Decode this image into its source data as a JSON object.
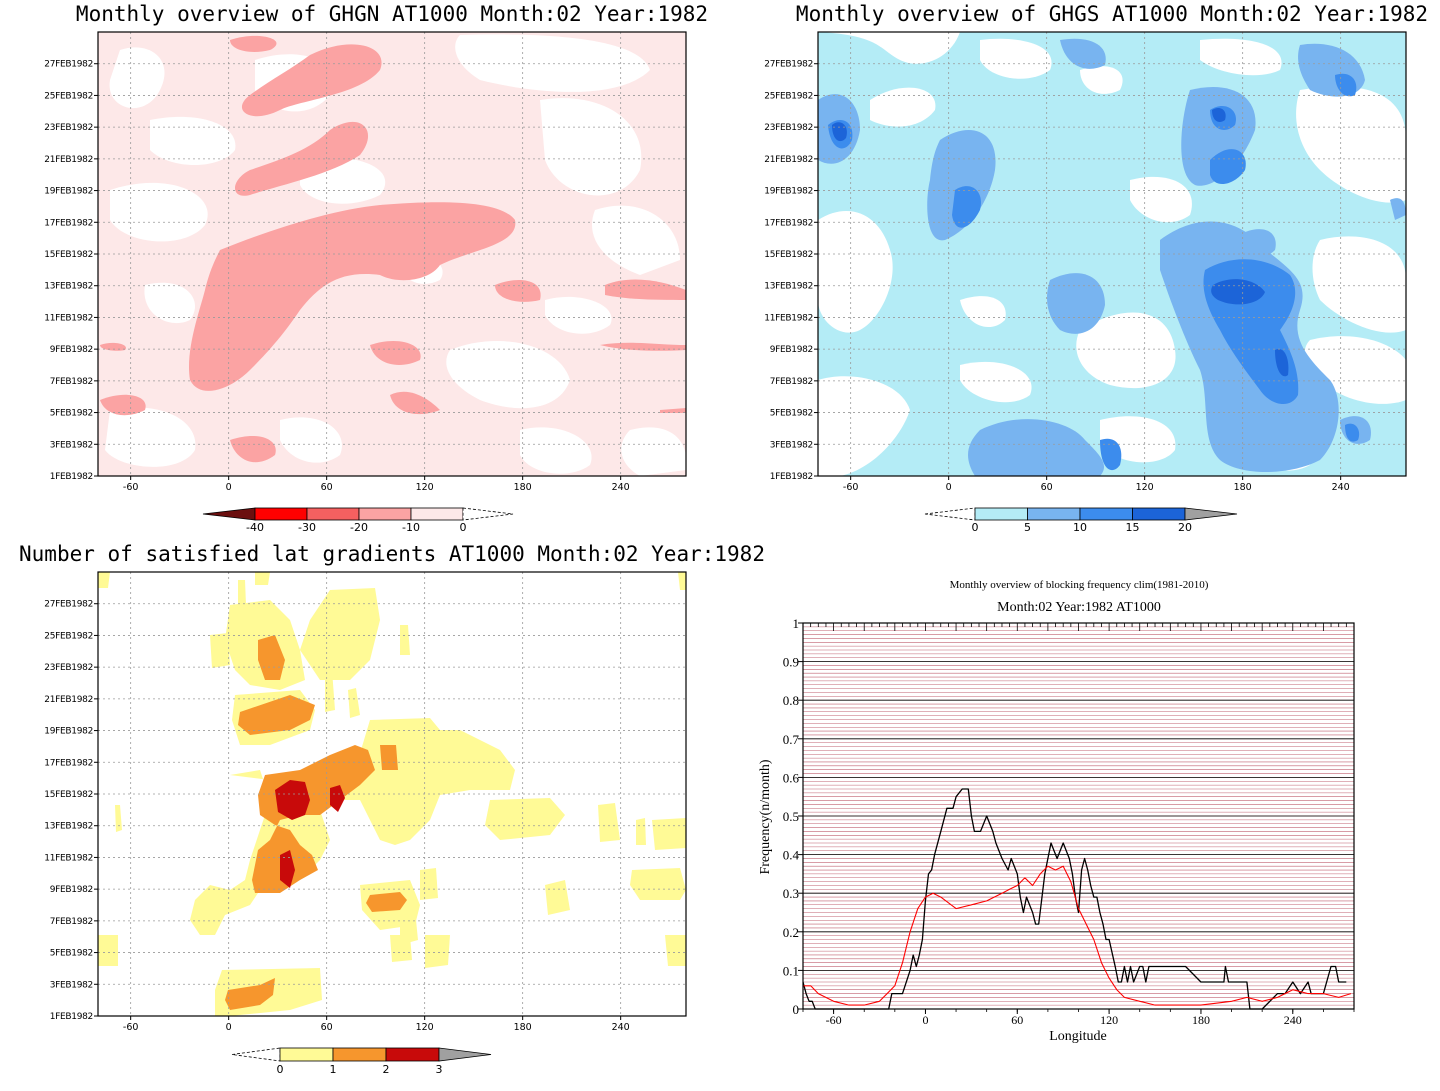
{
  "panels": {
    "ghgn": {
      "title": "Monthly overview of GHGN AT1000 Month:02 Year:1982"
    },
    "ghgs": {
      "title": "Monthly overview of GHGS AT1000 Month:02 Year:1982"
    },
    "latgrad": {
      "title": "Number of satisfied lat gradients AT1000 Month:02 Year:1982"
    },
    "blocking": {
      "title": "Monthly overview of blocking frequency clim(1981-2010)",
      "subtitle": "Month:02 Year:1982  AT1000"
    }
  },
  "colors": {
    "ghgn_levels": [
      "#6b0f0f",
      "#ff0000",
      "#f56060",
      "#fba3a3",
      "#fde8e8",
      "#ffffff"
    ],
    "ghgs_levels": [
      "#ffffff",
      "#b4ecf6",
      "#78b4f0",
      "#3c8ced",
      "#1c64d8",
      "#a0a0a0"
    ],
    "latgrad_levels": [
      "#ffffff",
      "#fffa96",
      "#f6962d",
      "#c80a0a",
      "#a0a0a0"
    ],
    "clim_line": "#ff0000",
    "obs_line": "#000000"
  },
  "chart_data": [
    {
      "type": "heatmap",
      "title": "Monthly overview of GHGN AT1000 Month:02 Year:1982",
      "x_ticks": [
        "-60",
        "0",
        "60",
        "120",
        "180",
        "240"
      ],
      "xlim": [
        -80,
        280
      ],
      "y_ticks": [
        "1FEB1982",
        "3FEB1982",
        "5FEB1982",
        "7FEB1982",
        "9FEB1982",
        "11FEB1982",
        "13FEB1982",
        "15FEB1982",
        "17FEB1982",
        "19FEB1982",
        "21FEB1982",
        "23FEB1982",
        "25FEB1982",
        "27FEB1982"
      ],
      "colorbar": {
        "labels": [
          "-40",
          "-30",
          "-20",
          "-10",
          "0"
        ],
        "levels": [
          -40,
          -30,
          -20,
          -10,
          0
        ],
        "extend": "both"
      }
    },
    {
      "type": "heatmap",
      "title": "Monthly overview of GHGS AT1000 Month:02 Year:1982",
      "x_ticks": [
        "-60",
        "0",
        "60",
        "120",
        "180",
        "240"
      ],
      "xlim": [
        -80,
        280
      ],
      "y_ticks": [
        "1FEB1982",
        "3FEB1982",
        "5FEB1982",
        "7FEB1982",
        "9FEB1982",
        "11FEB1982",
        "13FEB1982",
        "15FEB1982",
        "17FEB1982",
        "19FEB1982",
        "21FEB1982",
        "23FEB1982",
        "25FEB1982",
        "27FEB1982"
      ],
      "colorbar": {
        "labels": [
          "0",
          "5",
          "10",
          "15",
          "20"
        ],
        "levels": [
          0,
          5,
          10,
          15,
          20
        ],
        "extend": "both"
      }
    },
    {
      "type": "heatmap",
      "title": "Number of satisfied lat gradients AT1000 Month:02 Year:1982",
      "x_ticks": [
        "-60",
        "0",
        "60",
        "120",
        "180",
        "240"
      ],
      "xlim": [
        -80,
        280
      ],
      "y_ticks": [
        "1FEB1982",
        "3FEB1982",
        "5FEB1982",
        "7FEB1982",
        "9FEB1982",
        "11FEB1982",
        "13FEB1982",
        "15FEB1982",
        "17FEB1982",
        "19FEB1982",
        "21FEB1982",
        "23FEB1982",
        "25FEB1982",
        "27FEB1982"
      ],
      "colorbar": {
        "labels": [
          "0",
          "1",
          "2",
          "3"
        ],
        "levels": [
          0,
          1,
          2,
          3
        ],
        "extend": "both"
      }
    },
    {
      "type": "line",
      "title": "Monthly overview of blocking frequency clim(1981-2010)",
      "subtitle": "Month:02 Year:1982  AT1000",
      "xlabel": "Longitude",
      "ylabel": "Frequency(n/month)",
      "xlim": [
        -80,
        280
      ],
      "ylim": [
        0,
        1
      ],
      "x_ticks": [
        "-60",
        "0",
        "60",
        "120",
        "180",
        "240"
      ],
      "y_ticks": [
        "0",
        "0.1",
        "0.2",
        "0.3",
        "0.4",
        "0.5",
        "0.6",
        "0.7",
        "0.8",
        "0.9",
        "1"
      ],
      "series": [
        {
          "color": "#000000",
          "x": [
            -80,
            -78,
            -76,
            -74,
            -72,
            -70,
            -60,
            -40,
            -26,
            -24,
            -22,
            -18,
            -15,
            -10,
            -8,
            -6,
            -4,
            -2,
            0,
            2,
            4,
            6,
            10,
            14,
            18,
            20,
            24,
            28,
            30,
            32,
            36,
            40,
            44,
            46,
            50,
            54,
            56,
            60,
            62,
            64,
            66,
            70,
            72,
            74,
            78,
            82,
            86,
            90,
            94,
            96,
            98,
            100,
            102,
            104,
            106,
            108,
            110,
            112,
            114,
            116,
            118,
            120,
            124,
            126,
            128,
            130,
            132,
            134,
            136,
            140,
            142,
            144,
            146,
            150,
            170,
            180,
            195,
            196,
            198,
            200,
            210,
            212,
            220,
            230,
            235,
            240,
            245,
            250,
            252,
            260,
            265,
            268,
            270,
            275
          ],
          "y": [
            0.07,
            0.04,
            0.02,
            0.02,
            0.0,
            0.0,
            0.0,
            0.0,
            0.0,
            0.0,
            0.04,
            0.04,
            0.04,
            0.1,
            0.14,
            0.11,
            0.14,
            0.18,
            0.28,
            0.35,
            0.36,
            0.4,
            0.46,
            0.52,
            0.52,
            0.55,
            0.57,
            0.57,
            0.5,
            0.46,
            0.46,
            0.5,
            0.46,
            0.43,
            0.39,
            0.36,
            0.39,
            0.35,
            0.29,
            0.25,
            0.29,
            0.25,
            0.22,
            0.22,
            0.35,
            0.43,
            0.39,
            0.43,
            0.39,
            0.35,
            0.29,
            0.25,
            0.36,
            0.39,
            0.36,
            0.32,
            0.29,
            0.29,
            0.25,
            0.22,
            0.18,
            0.18,
            0.11,
            0.07,
            0.07,
            0.11,
            0.07,
            0.11,
            0.07,
            0.11,
            0.11,
            0.07,
            0.11,
            0.11,
            0.11,
            0.07,
            0.07,
            0.11,
            0.07,
            0.07,
            0.07,
            0.0,
            0.0,
            0.04,
            0.04,
            0.07,
            0.04,
            0.07,
            0.04,
            0.04,
            0.11,
            0.11,
            0.07,
            0.07
          ]
        },
        {
          "color": "#ff0000",
          "x": [
            -80,
            -75,
            -70,
            -60,
            -50,
            -40,
            -30,
            -20,
            -15,
            -10,
            -5,
            0,
            5,
            10,
            20,
            30,
            40,
            50,
            55,
            60,
            65,
            70,
            75,
            80,
            85,
            90,
            95,
            100,
            105,
            110,
            115,
            120,
            125,
            130,
            140,
            150,
            160,
            180,
            200,
            210,
            220,
            230,
            240,
            250,
            260,
            270,
            278
          ],
          "y": [
            0.06,
            0.06,
            0.04,
            0.02,
            0.01,
            0.01,
            0.02,
            0.06,
            0.12,
            0.2,
            0.26,
            0.29,
            0.3,
            0.29,
            0.26,
            0.27,
            0.28,
            0.3,
            0.31,
            0.32,
            0.34,
            0.32,
            0.35,
            0.37,
            0.36,
            0.37,
            0.33,
            0.26,
            0.22,
            0.18,
            0.12,
            0.08,
            0.05,
            0.03,
            0.02,
            0.01,
            0.01,
            0.01,
            0.02,
            0.03,
            0.02,
            0.03,
            0.05,
            0.04,
            0.04,
            0.03,
            0.04
          ]
        }
      ]
    }
  ]
}
